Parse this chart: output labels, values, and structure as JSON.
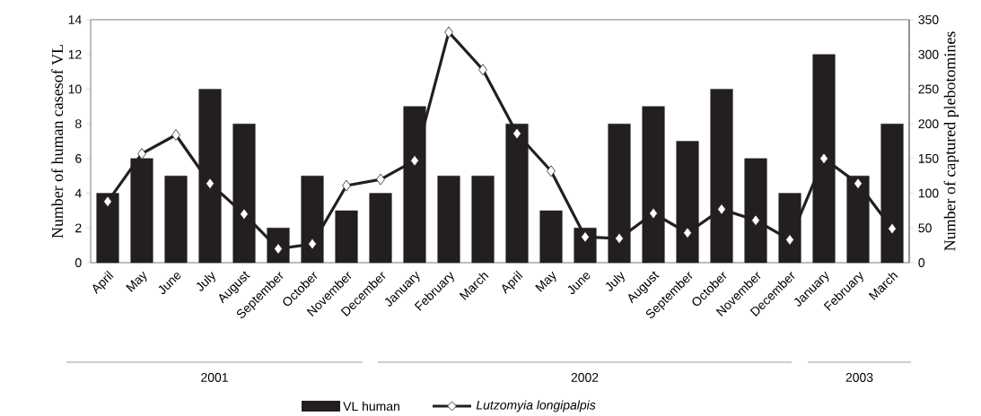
{
  "chart_data": {
    "type": "bar",
    "categories": [
      "April",
      "May",
      "June",
      "July",
      "August",
      "September",
      "October",
      "November",
      "December",
      "January",
      "February",
      "March",
      "April",
      "May",
      "June",
      "July",
      "August",
      "September",
      "October",
      "November",
      "December",
      "January",
      "February",
      "March"
    ],
    "series": [
      {
        "name": "VL human",
        "color": "#231f20",
        "values": [
          4,
          6,
          5,
          10,
          8,
          2,
          5,
          3,
          4,
          9,
          5,
          5,
          8,
          3,
          2,
          8,
          9,
          7,
          10,
          6,
          4,
          12,
          5,
          8
        ]
      },
      {
        "name": "Lutzomyia longipalpis",
        "type": "line",
        "axis": "y2",
        "color": "#231f20",
        "values": [
          88,
          157,
          184,
          114,
          70,
          20,
          27,
          111,
          120,
          147,
          332,
          278,
          186,
          132,
          37,
          35,
          71,
          43,
          77,
          61,
          33,
          150,
          114,
          49
        ]
      }
    ],
    "marker": "diamond",
    "ylabel": "Number of human casesof VL",
    "y2label": "Number of captured plebotomines",
    "ylim": [
      0,
      14
    ],
    "yticks": [
      0,
      2,
      4,
      6,
      8,
      10,
      12,
      14
    ],
    "y2lim": [
      0,
      350
    ],
    "y2ticks": [
      0,
      50,
      100,
      150,
      200,
      250,
      300,
      350
    ],
    "annotations": [
      "2001",
      "2002",
      "2003"
    ],
    "legend": "bottom",
    "grid": false
  }
}
